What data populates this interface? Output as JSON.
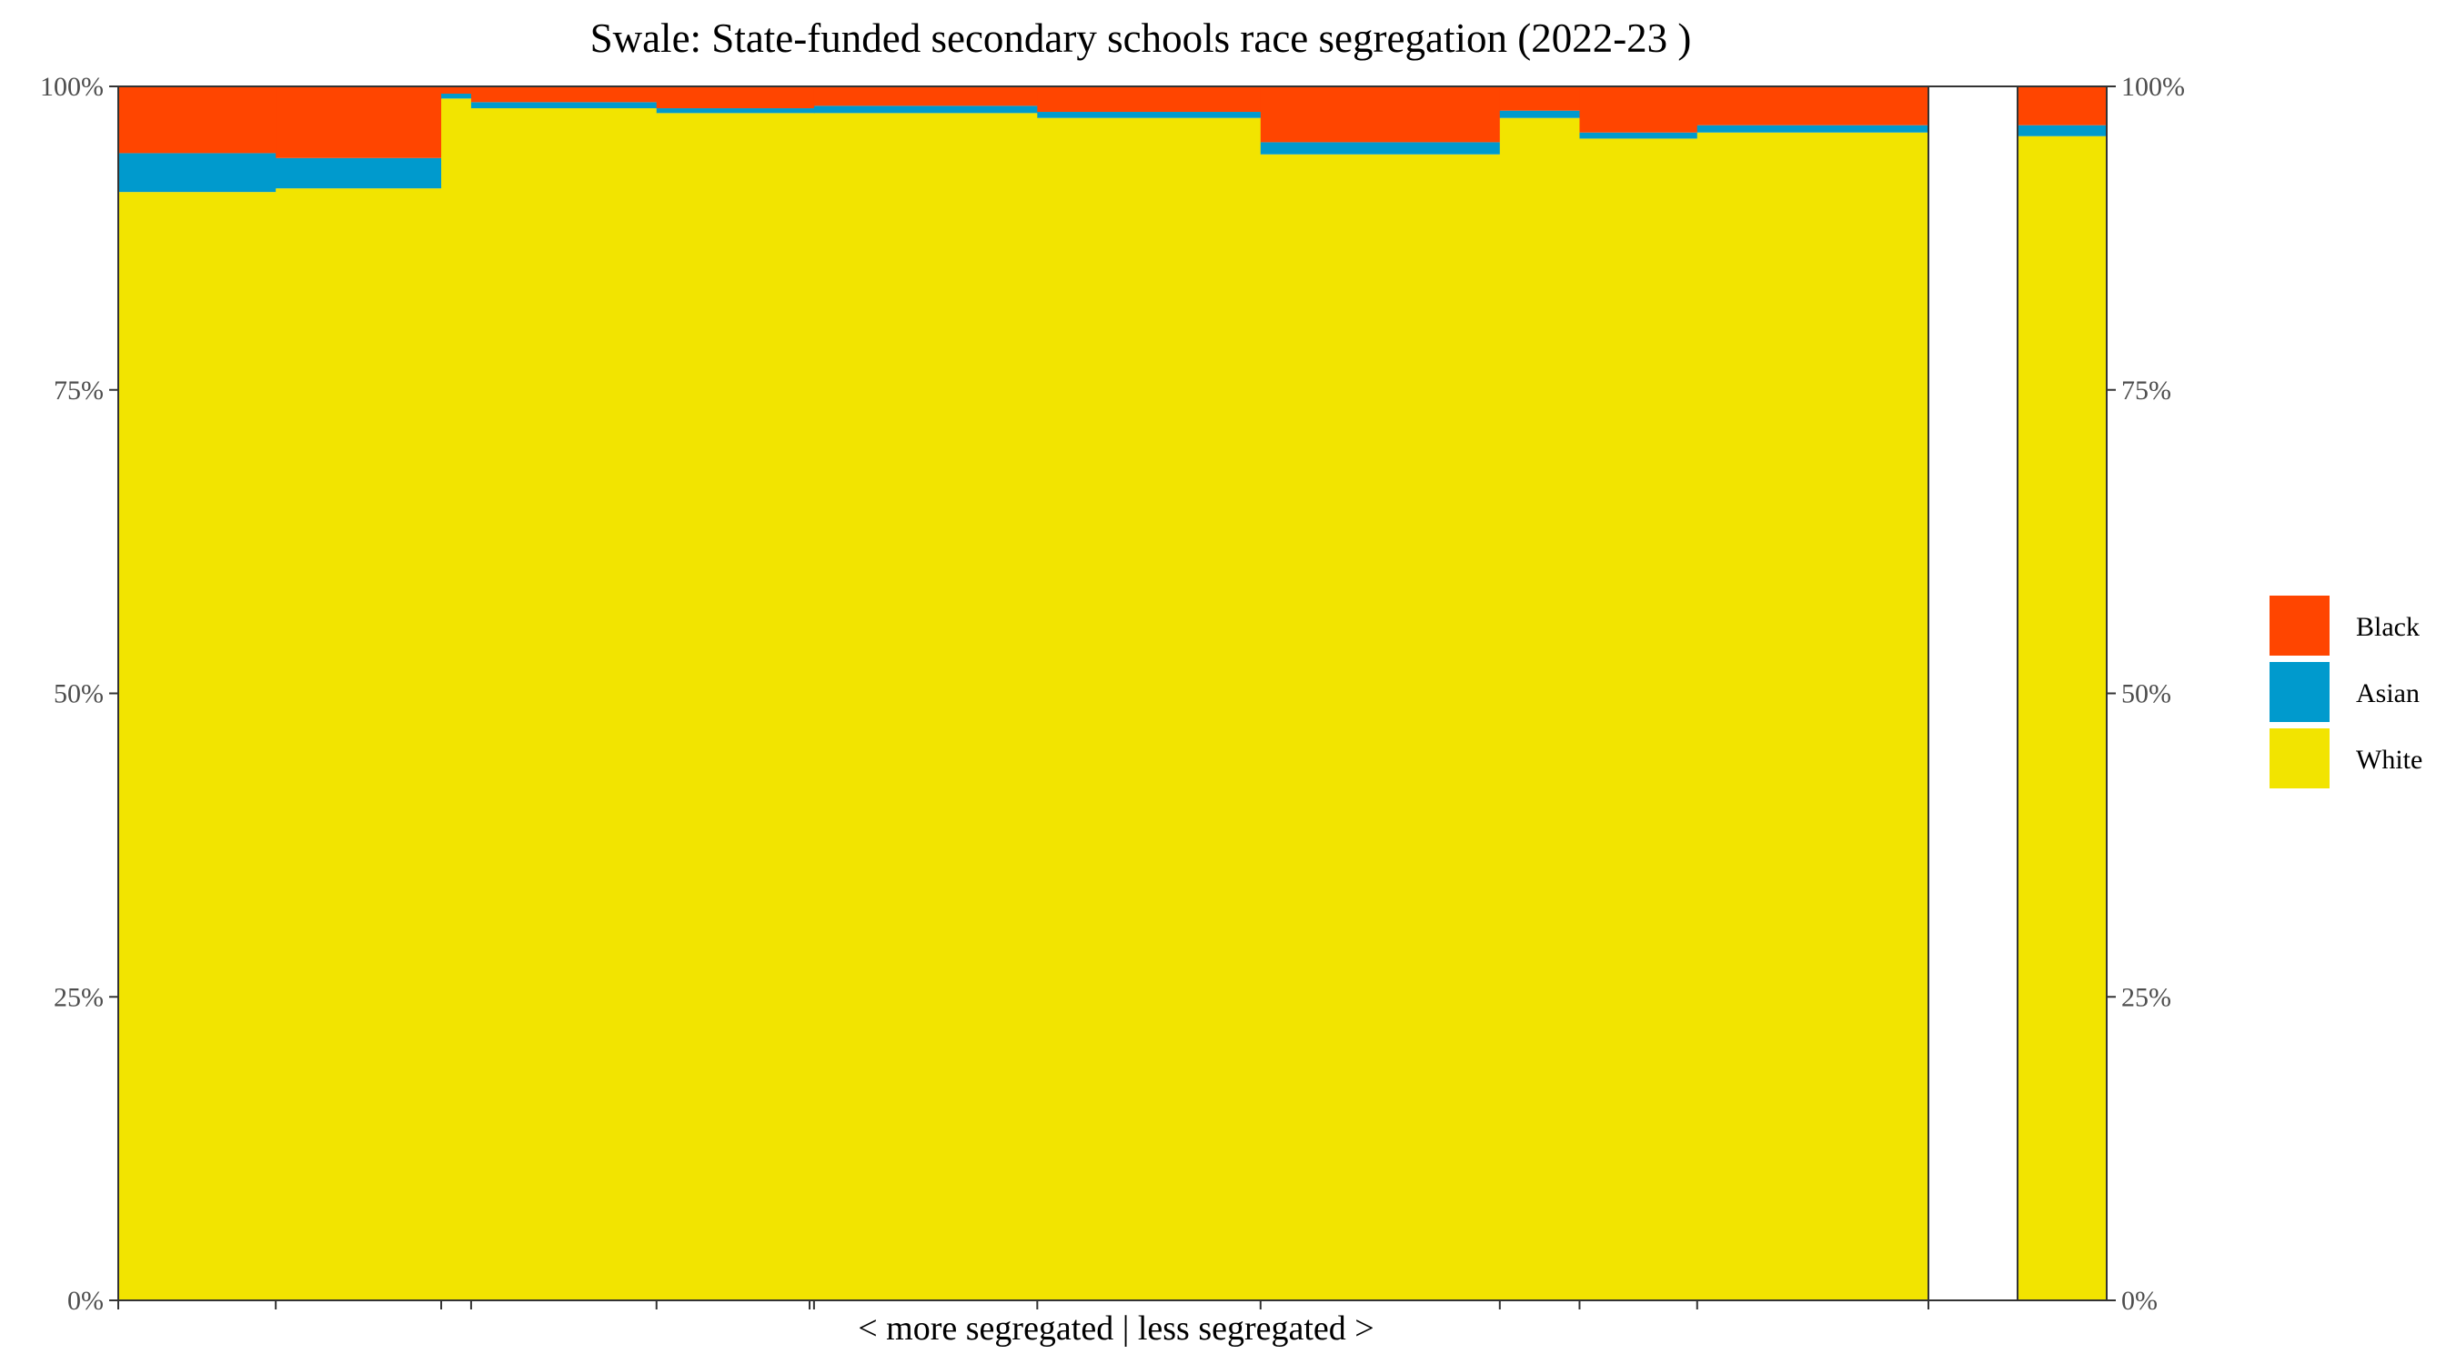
{
  "chart_data": {
    "type": "bar",
    "subtype": "stacked-variable-width",
    "title": "Swale: State-funded secondary schools race segregation (2022-23 )",
    "xlabel": "< more segregated | less segregated >",
    "ylabel": "",
    "ylim": [
      0,
      100
    ],
    "y_ticks": [
      "0%",
      "25%",
      "50%",
      "75%",
      "100%"
    ],
    "y_ticks_right": [
      "0%",
      "25%",
      "50%",
      "75%",
      "100%"
    ],
    "grid": false,
    "legend_position": "right",
    "colors": {
      "Black": "#FF4500",
      "Asian": "#009ACD",
      "White": "#F2E400"
    },
    "series": [
      {
        "name": "Black"
      },
      {
        "name": "Asian"
      },
      {
        "name": "White"
      }
    ],
    "schools": [
      {
        "width": 7.9,
        "White": 91.3,
        "Asian": 3.2,
        "Black": 5.5
      },
      {
        "width": 8.3,
        "White": 91.6,
        "Asian": 2.5,
        "Black": 5.9
      },
      {
        "width": 1.5,
        "White": 99.0,
        "Asian": 0.4,
        "Black": 0.6
      },
      {
        "width": 9.3,
        "White": 98.2,
        "Asian": 0.5,
        "Black": 1.3
      },
      {
        "width": 7.9,
        "White": 97.8,
        "Asian": 0.4,
        "Black": 1.8
      },
      {
        "width": 11.2,
        "White": 97.8,
        "Asian": 0.6,
        "Black": 1.6
      },
      {
        "width": 11.2,
        "White": 97.4,
        "Asian": 0.5,
        "Black": 2.1
      },
      {
        "width": 12.0,
        "White": 94.4,
        "Asian": 1.0,
        "Black": 4.6
      },
      {
        "width": 4.0,
        "White": 97.4,
        "Asian": 0.6,
        "Black": 2.0
      },
      {
        "width": 5.9,
        "White": 95.7,
        "Asian": 0.5,
        "Black": 3.8
      },
      {
        "width": 11.6,
        "White": 96.2,
        "Asian": 0.6,
        "Black": 3.2
      }
    ],
    "total_bar": {
      "White": 95.9,
      "Asian": 0.9,
      "Black": 3.2
    }
  }
}
